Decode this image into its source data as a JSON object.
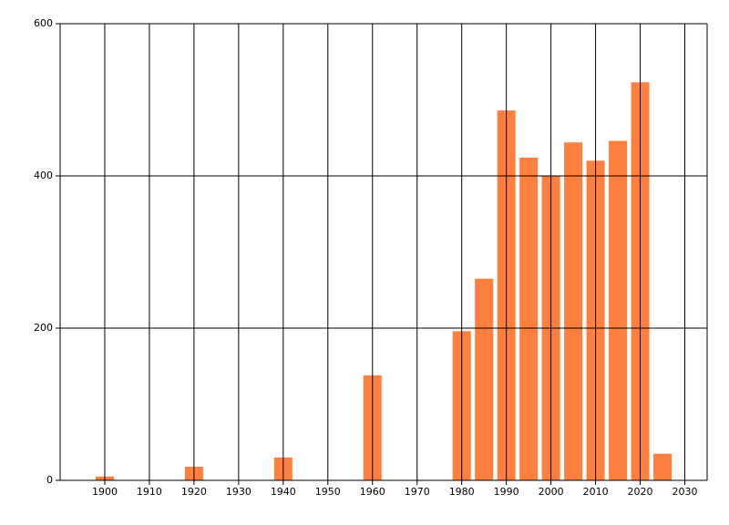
{
  "chart_data": {
    "type": "bar",
    "x": [
      1900,
      1920,
      1940,
      1960,
      1980,
      1985,
      1990,
      1995,
      2000,
      2005,
      2010,
      2015,
      2020,
      2025
    ],
    "values": [
      5,
      18,
      30,
      138,
      196,
      265,
      486,
      424,
      400,
      444,
      420,
      446,
      523,
      35
    ],
    "color": "#ff7f3f",
    "xlim": [
      1890,
      2035
    ],
    "xticks": [
      1900,
      1910,
      1920,
      1930,
      1940,
      1950,
      1960,
      1970,
      1980,
      1990,
      2000,
      2010,
      2020,
      2030
    ],
    "ylim": [
      0,
      600
    ],
    "yticks": [
      0,
      200,
      400,
      600
    ],
    "grid": true
  }
}
